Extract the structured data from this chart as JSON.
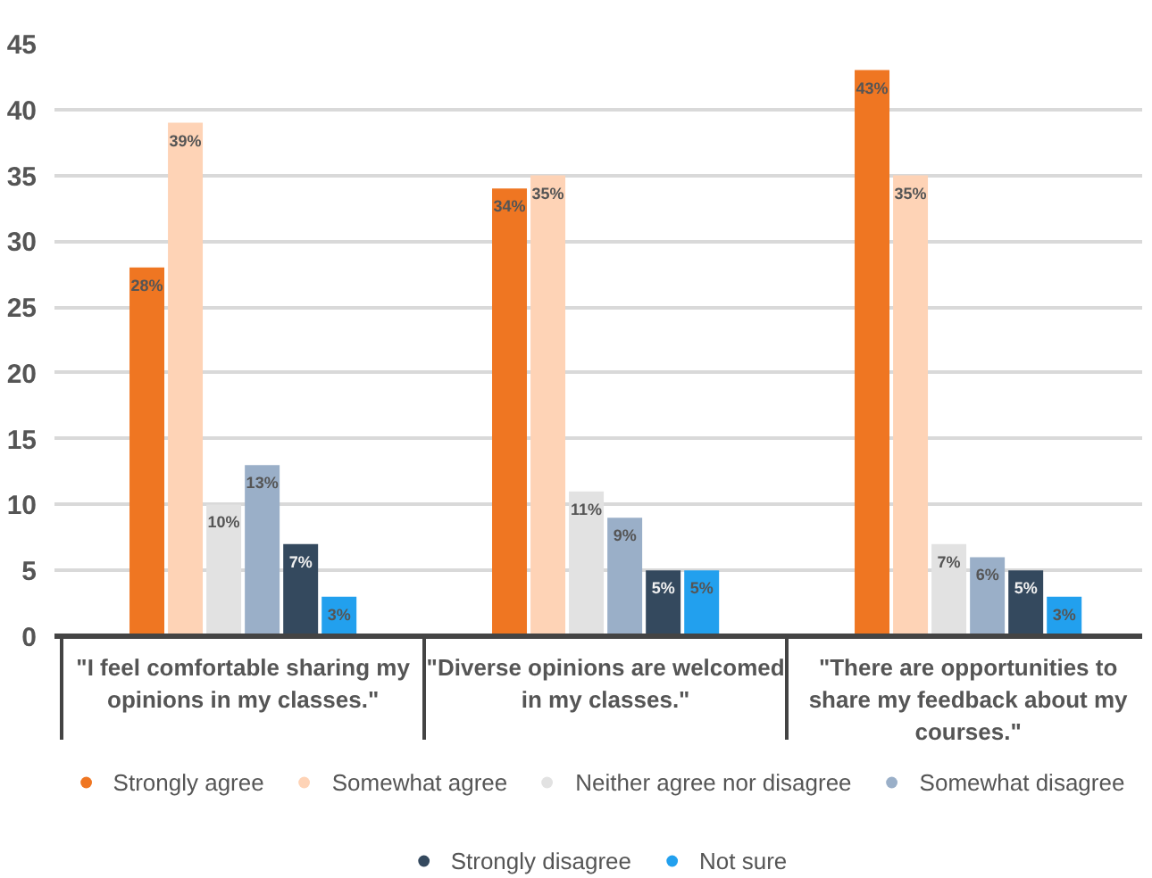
{
  "chart_data": {
    "type": "bar",
    "categories": [
      "\"I feel comfortable sharing my opinions in my classes.\"",
      "\"Diverse opinions are welcomed in my classes.\"",
      "\"There are opportunities to share my feedback about my courses.\""
    ],
    "series": [
      {
        "name": "Strongly agree",
        "color": "#ef7622",
        "values": [
          28,
          34,
          43
        ],
        "value_labels": [
          "28%",
          "34%",
          "43%"
        ]
      },
      {
        "name": "Somewhat agree",
        "color": "#fed3b6",
        "values": [
          39,
          35,
          35
        ],
        "value_labels": [
          "39%",
          "35%",
          "35%"
        ]
      },
      {
        "name": "Neither agree nor disagree",
        "color": "#e2e2e2",
        "values": [
          10,
          11,
          7
        ],
        "value_labels": [
          "10%",
          "11%",
          "7%"
        ]
      },
      {
        "name": "Somewhat disagree",
        "color": "#9aafc8",
        "values": [
          13,
          9,
          6
        ],
        "value_labels": [
          "13%",
          "9%",
          "6%"
        ]
      },
      {
        "name": "Strongly disagree",
        "color": "#34495e",
        "values": [
          7,
          5,
          5
        ],
        "value_labels": [
          "7%",
          "5%",
          "5%"
        ]
      },
      {
        "name": "Not sure",
        "color": "#22a0ee",
        "values": [
          3,
          5,
          3
        ],
        "value_labels": [
          "3%",
          "5%",
          "3%"
        ]
      }
    ],
    "ylim": [
      0,
      45
    ],
    "yticks": [
      0,
      5,
      10,
      15,
      20,
      25,
      30,
      35,
      40,
      45
    ],
    "grid": "y",
    "legend": "bottom"
  }
}
